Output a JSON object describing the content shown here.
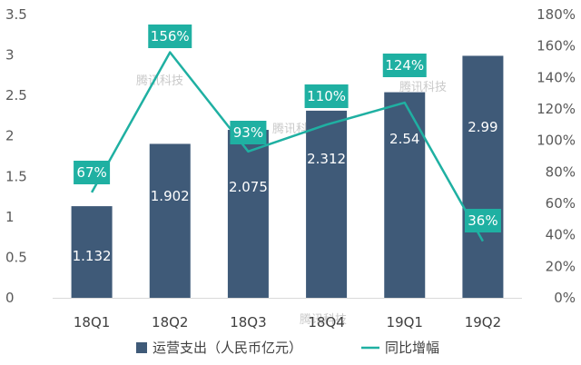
{
  "chart_data": {
    "type": "bar",
    "categories": [
      "18Q1",
      "18Q2",
      "18Q3",
      "18Q4",
      "19Q1",
      "19Q2"
    ],
    "series": [
      {
        "name": "运营支出（人民币亿元）",
        "kind": "bar",
        "axis": "left",
        "values": [
          1.132,
          1.902,
          2.075,
          2.312,
          2.54,
          2.99
        ],
        "labels": [
          "1.132",
          "1.902",
          "2.075",
          "2.312",
          "2.54",
          "2.99"
        ]
      },
      {
        "name": "同比增幅",
        "kind": "line",
        "axis": "right",
        "values": [
          67,
          156,
          93,
          110,
          124,
          36
        ],
        "labels": [
          "67%",
          "156%",
          "93%",
          "110%",
          "124%",
          "36%"
        ]
      }
    ],
    "y_left": {
      "min": 0,
      "max": 3.5,
      "ticks": [
        "0",
        "0.5",
        "1",
        "1.5",
        "2",
        "2.5",
        "3",
        "3.5"
      ]
    },
    "y_right": {
      "min": 0,
      "max": 180,
      "ticks": [
        "0%",
        "20%",
        "40%",
        "60%",
        "80%",
        "100%",
        "120%",
        "140%",
        "160%",
        "180%"
      ]
    },
    "legend_position": "bottom",
    "grid": false,
    "watermark": "腾讯科技"
  },
  "colors": {
    "bar": "#3f5a78",
    "line": "#1fb0a2",
    "label_box": "#1fb0a2"
  }
}
